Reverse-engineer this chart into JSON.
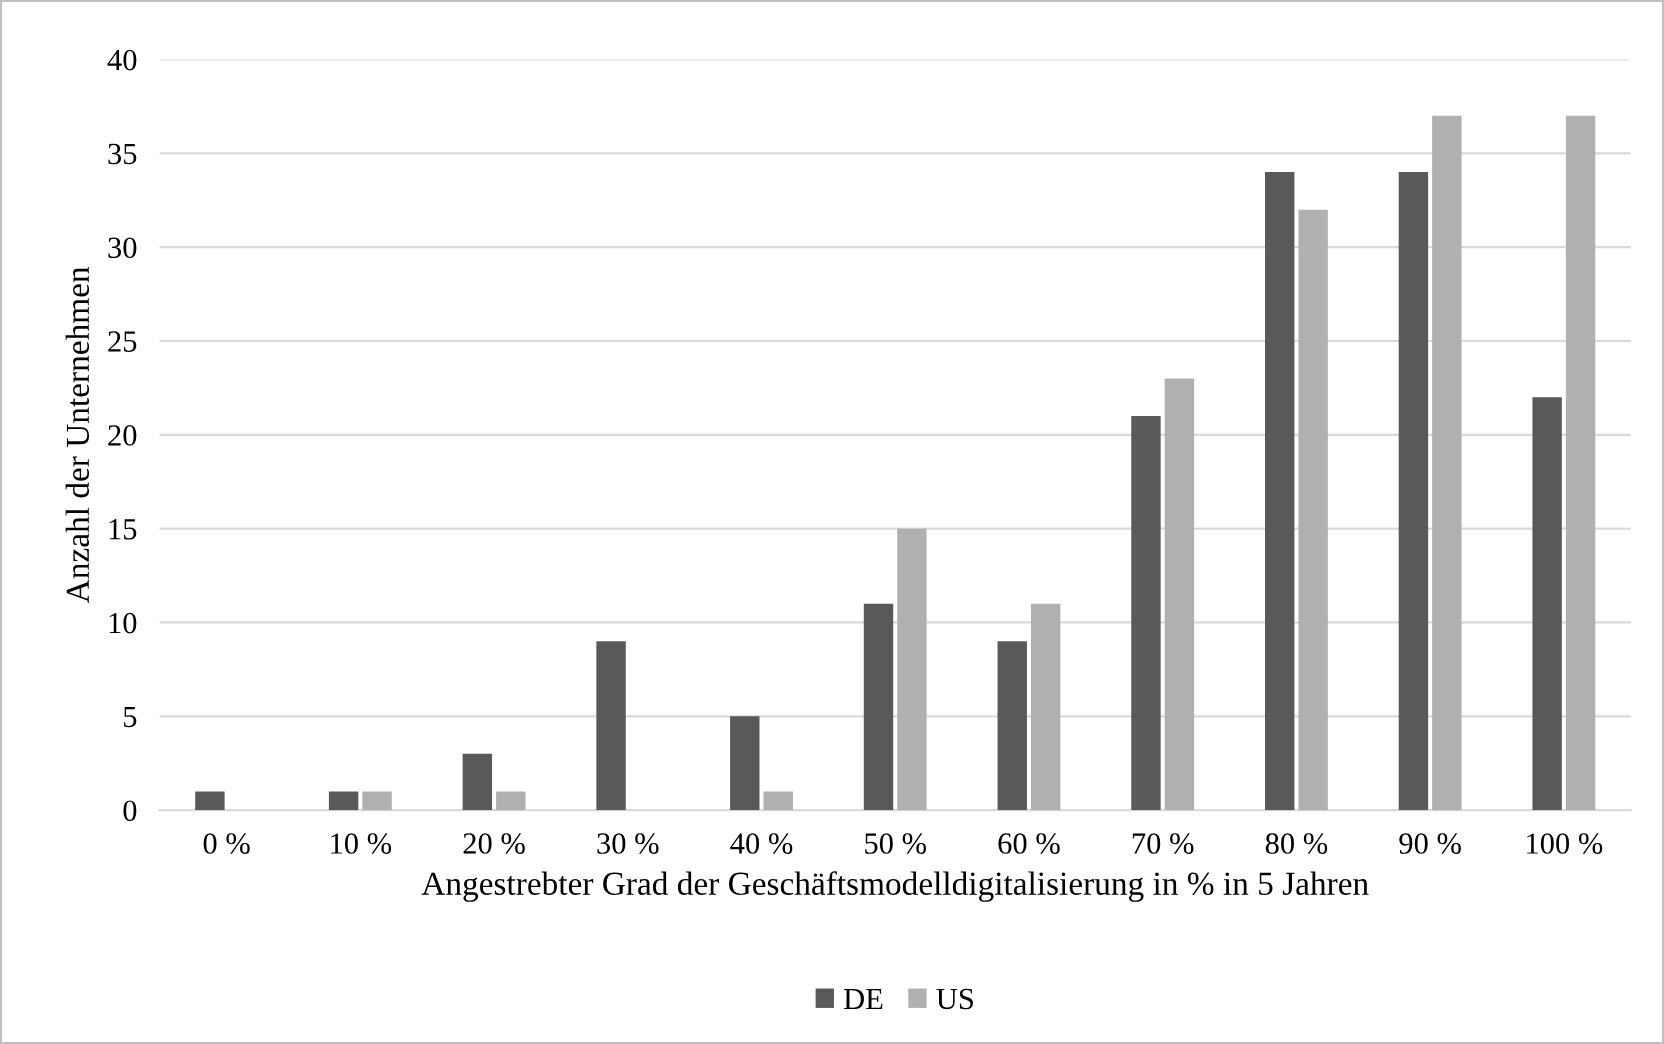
{
  "chart_data": {
    "type": "bar",
    "xlabel": "Angestrebter Grad der Geschäftsmodelldigitalisierung in % in 5 Jahren",
    "ylabel": "Anzahl der Unternehmen",
    "categories": [
      "0 %",
      "10 %",
      "20 %",
      "30 %",
      "40 %",
      "50 %",
      "60 %",
      "70 %",
      "80 %",
      "90 %",
      "100 %"
    ],
    "series": [
      {
        "name": "DE",
        "color": "#595959",
        "values": [
          1,
          1,
          3,
          9,
          5,
          11,
          9,
          21,
          34,
          34,
          22
        ]
      },
      {
        "name": "US",
        "color": "#b0b0b0",
        "values": [
          0,
          1,
          1,
          0,
          1,
          15,
          11,
          23,
          32,
          37,
          37
        ]
      }
    ],
    "ylim": [
      0,
      40
    ],
    "yticks": [
      0,
      5,
      10,
      15,
      20,
      25,
      30,
      35,
      40
    ],
    "grid": "y",
    "legend": "bottom"
  }
}
